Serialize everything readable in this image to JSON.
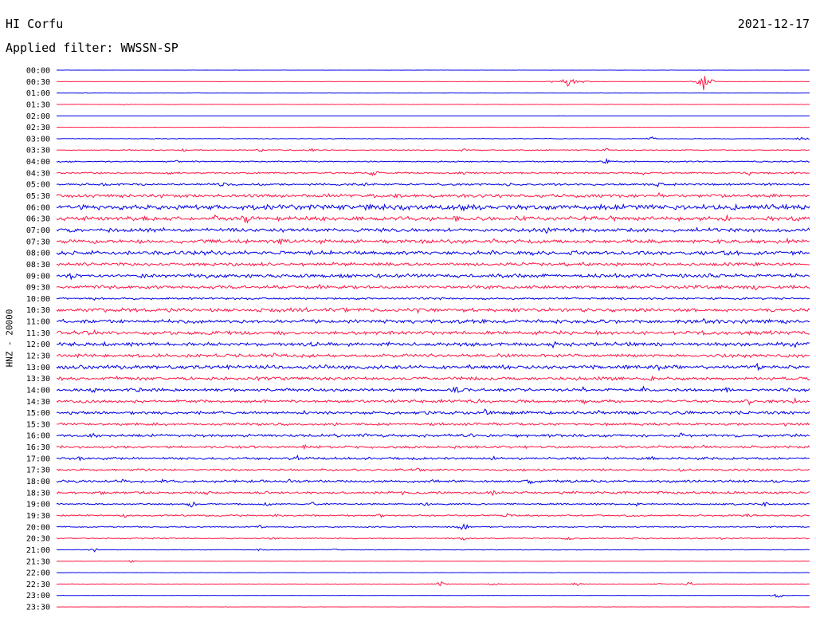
{
  "header": {
    "station": "HI Corfu",
    "date": "2021-12-17",
    "filter_label": "Applied filter: WWSSN-SP"
  },
  "colors": {
    "trace_even": "#0000e6",
    "trace_odd": "#ff1745",
    "background": "#ffffff",
    "text": "#000000"
  },
  "chart_data": {
    "type": "line",
    "title": "HI Corfu",
    "subtitle": "Applied filter: WWSSN-SP",
    "ylabel": "HNZ - 20000",
    "xlabel": "",
    "grid": false,
    "legend": "none",
    "channel": "HNZ",
    "scale": 20000,
    "series": [
      {
        "label": "00:00",
        "activity": 0.02,
        "events": []
      },
      {
        "label": "00:30",
        "activity": 0.04,
        "events": [
          [
            0.66,
            0.3
          ],
          [
            0.68,
            1.6
          ],
          [
            0.7,
            0.4
          ],
          [
            0.86,
            2.2
          ],
          [
            0.87,
            0.5
          ]
        ]
      },
      {
        "label": "01:00",
        "activity": 0.03,
        "events": [
          [
            0.04,
            0.1
          ],
          [
            0.1,
            0.1
          ]
        ]
      },
      {
        "label": "01:30",
        "activity": 0.04,
        "events": [
          [
            0.09,
            0.25
          ]
        ]
      },
      {
        "label": "02:00",
        "activity": 0.02,
        "events": [
          [
            0.67,
            0.1
          ]
        ]
      },
      {
        "label": "02:30",
        "activity": 0.04,
        "events": [
          [
            0.22,
            0.15
          ],
          [
            0.35,
            0.15
          ]
        ]
      },
      {
        "label": "03:00",
        "activity": 0.08,
        "events": [
          [
            0.79,
            0.5
          ],
          [
            0.99,
            0.6
          ]
        ]
      },
      {
        "label": "03:30",
        "activity": 0.12,
        "events": [
          [
            0.17,
            0.5
          ],
          [
            0.27,
            0.5
          ],
          [
            0.34,
            0.5
          ],
          [
            0.54,
            0.4
          ],
          [
            0.73,
            0.5
          ]
        ]
      },
      {
        "label": "04:00",
        "activity": 0.15,
        "events": [
          [
            0.02,
            0.3
          ],
          [
            0.16,
            0.3
          ],
          [
            0.73,
            0.6
          ]
        ]
      },
      {
        "label": "04:30",
        "activity": 0.2,
        "events": [
          [
            0.15,
            0.4
          ],
          [
            0.36,
            0.4
          ],
          [
            0.42,
            1.1
          ],
          [
            0.54,
            0.5
          ],
          [
            0.78,
            0.6
          ],
          [
            0.92,
            0.6
          ],
          [
            0.98,
            0.6
          ]
        ]
      },
      {
        "label": "05:00",
        "activity": 0.25,
        "events": [
          [
            0.06,
            0.5
          ],
          [
            0.22,
            0.6
          ],
          [
            0.41,
            0.4
          ],
          [
            0.6,
            0.5
          ],
          [
            0.8,
            0.7
          ],
          [
            0.95,
            0.5
          ]
        ]
      },
      {
        "label": "05:30",
        "activity": 0.4,
        "events": [
          [
            0.0,
            0.6
          ],
          [
            0.14,
            0.5
          ],
          [
            0.5,
            0.7
          ],
          [
            0.8,
            0.7
          ],
          [
            0.92,
            0.6
          ]
        ]
      },
      {
        "label": "06:00",
        "activity": 0.6,
        "events": [
          [
            0.07,
            0.7
          ],
          [
            0.28,
            0.8
          ],
          [
            0.46,
            0.9
          ],
          [
            0.54,
            1.0
          ],
          [
            0.74,
            0.9
          ],
          [
            0.9,
            0.8
          ]
        ]
      },
      {
        "label": "06:30",
        "activity": 0.5,
        "events": [
          [
            0.21,
            0.9
          ],
          [
            0.25,
            1.5
          ],
          [
            0.53,
            0.9
          ],
          [
            0.74,
            1.2
          ],
          [
            0.89,
            0.8
          ]
        ]
      },
      {
        "label": "07:00",
        "activity": 0.45,
        "events": [
          [
            0.07,
            0.5
          ],
          [
            0.3,
            0.5
          ],
          [
            0.65,
            1.2
          ],
          [
            0.85,
            0.6
          ]
        ]
      },
      {
        "label": "07:30",
        "activity": 0.45,
        "events": [
          [
            0.11,
            0.8
          ],
          [
            0.3,
            1.6
          ],
          [
            0.35,
            0.7
          ],
          [
            0.58,
            0.7
          ],
          [
            0.88,
            0.6
          ],
          [
            0.97,
            0.6
          ]
        ]
      },
      {
        "label": "08:00",
        "activity": 0.5,
        "events": [
          [
            0.22,
            0.6
          ],
          [
            0.36,
            0.7
          ],
          [
            0.58,
            0.7
          ],
          [
            0.8,
            0.6
          ]
        ]
      },
      {
        "label": "08:30",
        "activity": 0.4,
        "events": [
          [
            0.14,
            0.5
          ],
          [
            0.46,
            0.5
          ],
          [
            0.7,
            0.6
          ],
          [
            0.93,
            0.5
          ]
        ]
      },
      {
        "label": "09:00",
        "activity": 0.45,
        "events": [
          [
            0.02,
            0.9
          ],
          [
            0.2,
            0.7
          ],
          [
            0.33,
            0.6
          ],
          [
            0.87,
            0.6
          ],
          [
            0.93,
            0.6
          ]
        ]
      },
      {
        "label": "09:30",
        "activity": 0.4,
        "events": [
          [
            0.06,
            0.5
          ],
          [
            0.35,
            0.6
          ],
          [
            0.85,
            0.6
          ],
          [
            0.93,
            0.7
          ]
        ]
      },
      {
        "label": "10:00",
        "activity": 0.25,
        "events": [
          [
            0.05,
            0.4
          ],
          [
            0.47,
            0.5
          ],
          [
            0.75,
            0.5
          ]
        ]
      },
      {
        "label": "10:30",
        "activity": 0.45,
        "events": [
          [
            0.15,
            0.6
          ],
          [
            0.27,
            0.7
          ],
          [
            0.48,
            0.6
          ],
          [
            0.83,
            0.6
          ],
          [
            0.95,
            0.6
          ]
        ]
      },
      {
        "label": "11:00",
        "activity": 0.45,
        "events": [
          [
            0.03,
            0.5
          ],
          [
            0.2,
            0.5
          ],
          [
            0.5,
            0.6
          ],
          [
            0.86,
            0.7
          ],
          [
            0.97,
            0.6
          ]
        ]
      },
      {
        "label": "11:30",
        "activity": 0.45,
        "events": [
          [
            0.05,
            0.6
          ],
          [
            0.25,
            0.6
          ],
          [
            0.5,
            0.6
          ],
          [
            0.86,
            0.7
          ],
          [
            0.94,
            0.6
          ]
        ]
      },
      {
        "label": "12:00",
        "activity": 0.45,
        "events": [
          [
            0.12,
            0.6
          ],
          [
            0.34,
            0.6
          ],
          [
            0.44,
            0.8
          ],
          [
            0.66,
            0.8
          ],
          [
            0.98,
            0.8
          ]
        ]
      },
      {
        "label": "12:30",
        "activity": 0.4,
        "events": [
          [
            0.03,
            0.6
          ],
          [
            0.29,
            0.7
          ],
          [
            0.5,
            0.6
          ],
          [
            0.73,
            0.6
          ],
          [
            0.97,
            0.5
          ]
        ]
      },
      {
        "label": "13:00",
        "activity": 0.45,
        "events": [
          [
            0.05,
            0.5
          ],
          [
            0.23,
            0.7
          ],
          [
            0.45,
            0.7
          ],
          [
            0.55,
            0.8
          ],
          [
            0.8,
            0.8
          ],
          [
            0.93,
            1.0
          ]
        ]
      },
      {
        "label": "13:30",
        "activity": 0.4,
        "events": [
          [
            0.08,
            0.5
          ],
          [
            0.3,
            0.5
          ],
          [
            0.39,
            0.6
          ],
          [
            0.56,
            0.7
          ],
          [
            0.79,
            0.6
          ],
          [
            0.97,
            0.5
          ]
        ]
      },
      {
        "label": "14:00",
        "activity": 0.35,
        "events": [
          [
            0.05,
            0.8
          ],
          [
            0.11,
            0.7
          ],
          [
            0.53,
            1.0
          ],
          [
            0.7,
            0.8
          ],
          [
            0.78,
            0.8
          ],
          [
            0.89,
            0.7
          ],
          [
            0.97,
            0.7
          ]
        ]
      },
      {
        "label": "14:30",
        "activity": 0.35,
        "events": [
          [
            0.05,
            0.7
          ],
          [
            0.2,
            0.5
          ],
          [
            0.51,
            0.6
          ],
          [
            0.56,
            1.1
          ],
          [
            0.7,
            0.6
          ],
          [
            0.92,
            0.7
          ],
          [
            0.98,
            0.7
          ]
        ]
      },
      {
        "label": "15:00",
        "activity": 0.35,
        "events": [
          [
            0.02,
            0.6
          ],
          [
            0.19,
            0.6
          ],
          [
            0.33,
            0.6
          ],
          [
            0.57,
            1.0
          ],
          [
            0.72,
            0.6
          ],
          [
            0.94,
            0.6
          ]
        ]
      },
      {
        "label": "15:30",
        "activity": 0.3,
        "events": [
          [
            0.24,
            0.5
          ],
          [
            0.5,
            0.5
          ],
          [
            0.73,
            0.5
          ],
          [
            0.97,
            0.6
          ]
        ]
      },
      {
        "label": "16:00",
        "activity": 0.35,
        "events": [
          [
            0.05,
            0.8
          ],
          [
            0.41,
            0.6
          ],
          [
            0.55,
            0.6
          ],
          [
            0.83,
            0.6
          ],
          [
            0.97,
            0.6
          ]
        ]
      },
      {
        "label": "16:30",
        "activity": 0.3,
        "events": [
          [
            0.26,
            0.5
          ],
          [
            0.33,
            0.6
          ],
          [
            0.53,
            0.5
          ],
          [
            0.86,
            0.6
          ]
        ]
      },
      {
        "label": "17:00",
        "activity": 0.3,
        "events": [
          [
            0.03,
            0.6
          ],
          [
            0.25,
            0.6
          ],
          [
            0.32,
            0.8
          ],
          [
            0.58,
            0.6
          ],
          [
            0.79,
            0.5
          ],
          [
            0.93,
            0.5
          ]
        ]
      },
      {
        "label": "17:30",
        "activity": 0.25,
        "events": [
          [
            0.12,
            0.4
          ],
          [
            0.48,
            0.4
          ],
          [
            0.62,
            0.4
          ],
          [
            0.83,
            0.5
          ]
        ]
      },
      {
        "label": "18:00",
        "activity": 0.3,
        "events": [
          [
            0.09,
            0.6
          ],
          [
            0.14,
            0.6
          ],
          [
            0.31,
            0.5
          ],
          [
            0.5,
            0.6
          ],
          [
            0.63,
            0.7
          ]
        ]
      },
      {
        "label": "18:30",
        "activity": 0.3,
        "events": [
          [
            0.06,
            0.5
          ],
          [
            0.2,
            0.6
          ],
          [
            0.46,
            0.5
          ],
          [
            0.58,
            0.6
          ],
          [
            0.8,
            0.5
          ],
          [
            0.94,
            0.7
          ]
        ]
      },
      {
        "label": "19:00",
        "activity": 0.2,
        "events": [
          [
            0.18,
            0.8
          ],
          [
            0.28,
            0.6
          ],
          [
            0.34,
            0.5
          ],
          [
            0.49,
            0.5
          ],
          [
            0.77,
            0.5
          ],
          [
            0.94,
            0.6
          ]
        ]
      },
      {
        "label": "19:30",
        "activity": 0.2,
        "events": [
          [
            0.09,
            0.5
          ],
          [
            0.29,
            0.4
          ],
          [
            0.43,
            0.5
          ],
          [
            0.6,
            0.6
          ],
          [
            0.76,
            0.4
          ],
          [
            0.92,
            0.5
          ]
        ]
      },
      {
        "label": "20:00",
        "activity": 0.15,
        "events": [
          [
            0.27,
            0.4
          ],
          [
            0.54,
            1.1
          ],
          [
            0.95,
            0.4
          ]
        ]
      },
      {
        "label": "20:30",
        "activity": 0.15,
        "events": [
          [
            0.29,
            0.4
          ],
          [
            0.54,
            0.4
          ],
          [
            0.68,
            0.5
          ],
          [
            0.77,
            0.5
          ],
          [
            0.88,
            0.4
          ]
        ]
      },
      {
        "label": "21:00",
        "activity": 0.08,
        "events": [
          [
            0.05,
            0.5
          ],
          [
            0.27,
            0.3
          ],
          [
            0.37,
            0.3
          ]
        ]
      },
      {
        "label": "21:30",
        "activity": 0.05,
        "events": [
          [
            0.1,
            0.3
          ]
        ]
      },
      {
        "label": "22:00",
        "activity": 0.04,
        "events": []
      },
      {
        "label": "22:30",
        "activity": 0.06,
        "events": [
          [
            0.51,
            0.6
          ],
          [
            0.58,
            0.5
          ],
          [
            0.69,
            0.5
          ],
          [
            0.8,
            0.3
          ],
          [
            0.84,
            0.6
          ]
        ]
      },
      {
        "label": "23:00",
        "activity": 0.04,
        "events": [
          [
            0.96,
            0.8
          ]
        ]
      },
      {
        "label": "23:30",
        "activity": 0.03,
        "events": []
      }
    ]
  }
}
